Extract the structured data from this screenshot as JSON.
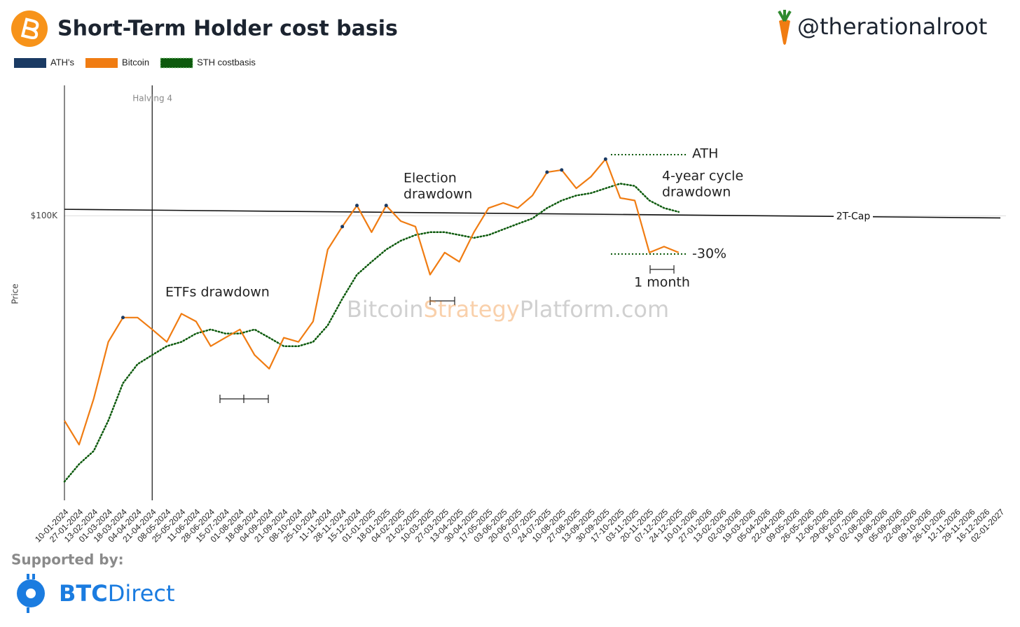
{
  "header": {
    "title": "Short-Term Holder cost basis",
    "handle": "@therationalroot"
  },
  "footer": {
    "supported_by": "Supported by:",
    "brand": [
      "BTC",
      "Direct"
    ]
  },
  "chart_data": {
    "type": "line",
    "y_label": "Price",
    "log_scale": true,
    "ylim": [
      34000,
      164000
    ],
    "yticks": [
      {
        "value": 100000,
        "label": "$100K"
      }
    ],
    "categories": [
      "10-01-2024",
      "27-01-2024",
      "13-02-2024",
      "01-03-2024",
      "18-03-2024",
      "04-04-2024",
      "21-04-2024",
      "08-05-2024",
      "25-05-2024",
      "11-06-2024",
      "28-06-2024",
      "15-07-2024",
      "01-08-2024",
      "18-08-2024",
      "04-09-2024",
      "21-09-2024",
      "08-10-2024",
      "25-10-2024",
      "11-11-2024",
      "28-11-2024",
      "15-12-2024",
      "01-01-2025",
      "18-01-2025",
      "04-02-2025",
      "21-02-2025",
      "10-03-2025",
      "27-03-2025",
      "13-04-2025",
      "30-04-2025",
      "17-05-2025",
      "03-06-2025",
      "20-06-2025",
      "07-07-2025",
      "24-07-2025",
      "10-08-2025",
      "27-08-2025",
      "13-09-2025",
      "30-09-2025",
      "17-10-2025",
      "03-11-2025",
      "20-11-2025",
      "07-12-2025",
      "24-12-2025",
      "10-01-2026",
      "27-01-2026",
      "13-02-2026",
      "02-03-2026",
      "19-03-2026",
      "05-04-2026",
      "22-04-2026",
      "09-05-2026",
      "26-05-2026",
      "12-06-2026",
      "29-06-2026",
      "16-07-2026",
      "02-08-2026",
      "19-08-2026",
      "05-09-2026",
      "22-09-2026",
      "09-10-2026",
      "26-10-2026",
      "12-11-2026",
      "29-11-2026",
      "16-12-2026",
      "02-01-2027"
    ],
    "series": [
      {
        "name": "ATH's",
        "color": "#1a3a63",
        "style": "dots",
        "values": [
          null,
          null,
          null,
          null,
          68000,
          null,
          null,
          null,
          null,
          null,
          null,
          null,
          null,
          null,
          null,
          null,
          null,
          null,
          null,
          96000,
          104000,
          null,
          104000,
          null,
          null,
          null,
          null,
          null,
          null,
          null,
          null,
          null,
          null,
          118000,
          119000,
          null,
          null,
          124000,
          null,
          null,
          null,
          null,
          null,
          null,
          null,
          null,
          null,
          null,
          null,
          null,
          null,
          null,
          null,
          null,
          null,
          null,
          null,
          null,
          null,
          null,
          null,
          null,
          null,
          null,
          null
        ]
      },
      {
        "name": "Bitcoin",
        "color": "#f07c12",
        "style": "solid",
        "values": [
          46000,
          42000,
          50000,
          62000,
          68000,
          68000,
          65000,
          62000,
          69000,
          67000,
          61000,
          63000,
          65000,
          59000,
          56000,
          63000,
          62000,
          67000,
          88000,
          96000,
          104000,
          94000,
          104000,
          98000,
          96000,
          80000,
          87000,
          84000,
          94000,
          103000,
          105000,
          103000,
          108000,
          118000,
          119000,
          111000,
          116000,
          124000,
          107000,
          106000,
          87000,
          89000,
          87000,
          null,
          null,
          null,
          null,
          null,
          null,
          null,
          null,
          null,
          null,
          null,
          null,
          null,
          null,
          null,
          null,
          null,
          null,
          null,
          null,
          null,
          null
        ]
      },
      {
        "name": "STH costbasis",
        "color": "#0d5a0d",
        "style": "dotted",
        "values": [
          36500,
          39000,
          41000,
          46000,
          53000,
          57000,
          59000,
          61000,
          62000,
          64000,
          65000,
          64000,
          64000,
          65000,
          63000,
          61000,
          61000,
          62000,
          66000,
          73000,
          80000,
          84000,
          88000,
          91000,
          93000,
          94000,
          94000,
          93000,
          92000,
          93000,
          95000,
          97000,
          99000,
          103000,
          106000,
          108000,
          109000,
          111000,
          113000,
          112000,
          106000,
          103000,
          101500,
          null,
          null,
          null,
          null,
          null,
          null,
          null,
          null,
          null,
          null,
          null,
          null,
          null,
          null,
          null,
          null,
          null,
          null,
          null,
          null,
          null,
          null
        ]
      }
    ],
    "reference_line": {
      "label": "2T-Cap",
      "values": [
        102500,
        99200
      ]
    },
    "halving": {
      "label": "Halving 4",
      "date": "21-04-2024"
    },
    "annotations": [
      [
        "ETFs drawdown"
      ],
      [
        "Election",
        "drawdown"
      ],
      [
        "ATH"
      ],
      [
        "4-year cycle",
        "drawdown"
      ],
      [
        "-30%"
      ],
      [
        "1 month"
      ]
    ],
    "watermark": [
      "Bitcoin",
      "Strategy",
      "Platform.com"
    ]
  }
}
